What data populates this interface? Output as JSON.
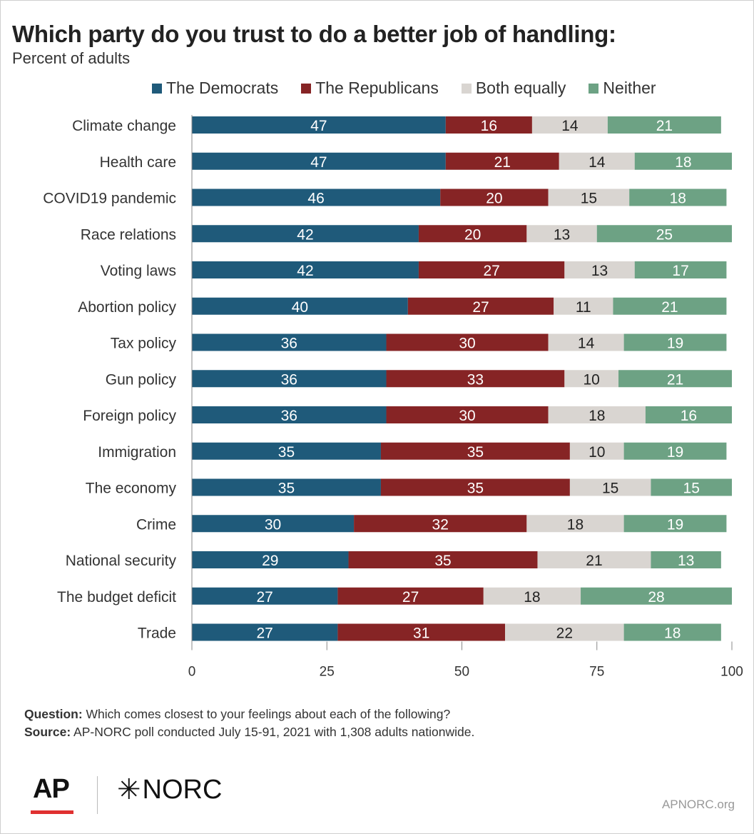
{
  "title": "Which party do you trust to do a better job of handling:",
  "subtitle": "Percent of adults",
  "legend": [
    {
      "label": "The Democrats",
      "color": "#1f5a7a"
    },
    {
      "label": "The Republicans",
      "color": "#862425"
    },
    {
      "label": "Both equally",
      "color": "#d9d5d1"
    },
    {
      "label": "Neither",
      "color": "#6da284"
    }
  ],
  "notes": {
    "question_label": "Question:",
    "question_text": " Which comes closest to your feelings about each of the following?",
    "source_label": "Source:",
    "source_text": " AP-NORC poll conducted July 15-91, 2021 with 1,308 adults nationwide."
  },
  "logos": {
    "ap": "AP",
    "norc_star": "✳",
    "norc": "NORC"
  },
  "site": "APNORC.org",
  "chart_data": {
    "type": "bar",
    "orientation": "horizontal",
    "stacked": true,
    "categories": [
      "Climate change",
      "Health care",
      "COVID19 pandemic",
      "Race relations",
      "Voting laws",
      "Abortion policy",
      "Tax policy",
      "Gun policy",
      "Foreign policy",
      "Immigration",
      "The economy",
      "Crime",
      "National security",
      "The budget deficit",
      "Trade"
    ],
    "series": [
      {
        "name": "The Democrats",
        "color": "#1f5a7a",
        "label_color": "#ffffff",
        "values": [
          47,
          47,
          46,
          42,
          42,
          40,
          36,
          36,
          36,
          35,
          35,
          30,
          29,
          27,
          27
        ]
      },
      {
        "name": "The Republicans",
        "color": "#862425",
        "label_color": "#ffffff",
        "values": [
          16,
          21,
          20,
          20,
          27,
          27,
          30,
          33,
          30,
          35,
          35,
          32,
          35,
          27,
          31
        ]
      },
      {
        "name": "Both equally",
        "color": "#d9d5d1",
        "label_color": "#222222",
        "values": [
          14,
          14,
          15,
          13,
          13,
          11,
          14,
          10,
          18,
          10,
          15,
          18,
          21,
          18,
          22
        ]
      },
      {
        "name": "Neither",
        "color": "#6da284",
        "label_color": "#ffffff",
        "values": [
          21,
          18,
          18,
          25,
          17,
          21,
          19,
          21,
          16,
          19,
          15,
          19,
          13,
          28,
          18
        ]
      }
    ],
    "xlim": [
      0,
      100
    ],
    "xticks": [
      0,
      25,
      50,
      75,
      100
    ],
    "grid": false,
    "legend_position": "top"
  }
}
